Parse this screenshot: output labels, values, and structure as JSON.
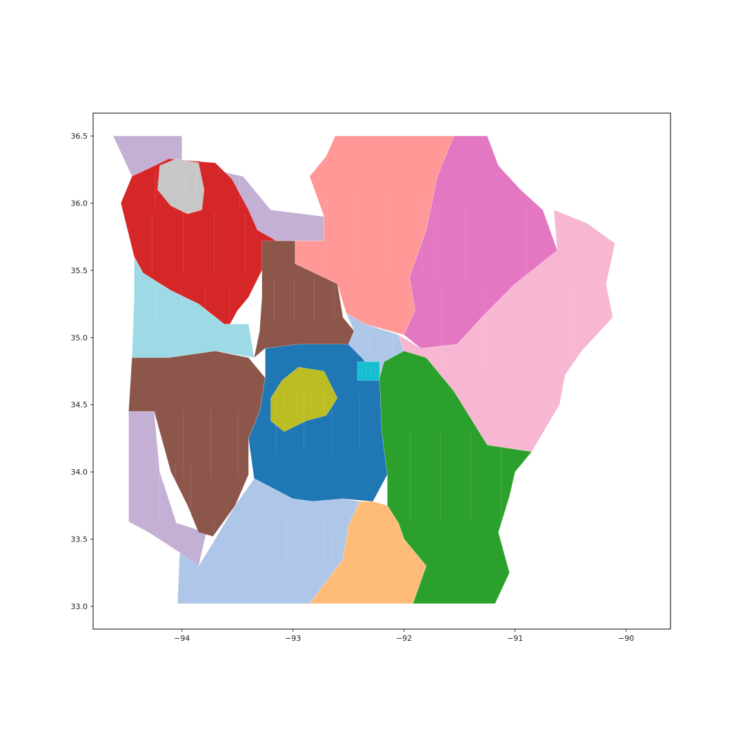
{
  "figure": {
    "background": "#ffffff"
  },
  "axes": {
    "xlim": [
      -94.8,
      -89.6
    ],
    "ylim": [
      32.83,
      36.67
    ],
    "x_ticks": [
      {
        "value": -94,
        "label": "−94"
      },
      {
        "value": -93,
        "label": "−93"
      },
      {
        "value": -92,
        "label": "−92"
      },
      {
        "value": -91,
        "label": "−91"
      },
      {
        "value": -90,
        "label": "−90"
      }
    ],
    "y_ticks": [
      {
        "value": 36.5,
        "label": "36.5"
      },
      {
        "value": 36.0,
        "label": "36.0"
      },
      {
        "value": 35.5,
        "label": "35.5"
      },
      {
        "value": 35.0,
        "label": "35.0"
      },
      {
        "value": 34.5,
        "label": "34.5"
      },
      {
        "value": 34.0,
        "label": "34.0"
      },
      {
        "value": 33.5,
        "label": "33.5"
      },
      {
        "value": 33.0,
        "label": "33.0"
      }
    ],
    "frame_color": "#000000",
    "grid": false
  },
  "map": {
    "type": "choropleth",
    "palette": "tab20",
    "regions": [
      {
        "id": "district-lavender-west",
        "color": "#c5b0d5",
        "outline": [
          [
            -94.62,
            36.5
          ],
          [
            -94.0,
            36.5
          ],
          [
            -94.0,
            36.3
          ],
          [
            -93.45,
            36.2
          ],
          [
            -93.2,
            35.95
          ],
          [
            -92.72,
            35.9
          ],
          [
            -92.72,
            35.72
          ],
          [
            -93.4,
            35.72
          ],
          [
            -93.6,
            36.0
          ],
          [
            -94.45,
            36.2
          ]
        ]
      },
      {
        "id": "district-lavender-southwest",
        "color": "#c5b0d5",
        "outline": [
          [
            -94.48,
            34.45
          ],
          [
            -94.25,
            34.45
          ],
          [
            -94.2,
            34.0
          ],
          [
            -94.05,
            33.62
          ],
          [
            -93.78,
            33.55
          ],
          [
            -93.85,
            33.3
          ],
          [
            -93.98,
            33.25
          ],
          [
            -94.02,
            33.4
          ],
          [
            -94.3,
            33.55
          ],
          [
            -94.48,
            33.63
          ]
        ]
      },
      {
        "id": "district-red",
        "color": "#d62728",
        "outline": [
          [
            -94.45,
            36.2
          ],
          [
            -94.32,
            36.25
          ],
          [
            -94.12,
            36.33
          ],
          [
            -93.7,
            36.3
          ],
          [
            -93.55,
            36.18
          ],
          [
            -93.4,
            35.95
          ],
          [
            -93.32,
            35.8
          ],
          [
            -93.15,
            35.72
          ],
          [
            -93.28,
            35.5
          ],
          [
            -93.4,
            35.3
          ],
          [
            -93.5,
            35.2
          ],
          [
            -93.58,
            35.08
          ],
          [
            -93.62,
            35.1
          ],
          [
            -93.85,
            35.25
          ],
          [
            -94.1,
            35.35
          ],
          [
            -94.35,
            35.48
          ],
          [
            -94.43,
            35.6
          ],
          [
            -94.55,
            36.0
          ]
        ]
      },
      {
        "id": "district-gray",
        "color": "#c7c7c7",
        "outline": [
          [
            -94.2,
            36.28
          ],
          [
            -94.05,
            36.33
          ],
          [
            -93.85,
            36.3
          ],
          [
            -93.8,
            36.1
          ],
          [
            -93.82,
            35.95
          ],
          [
            -93.95,
            35.92
          ],
          [
            -94.1,
            35.98
          ],
          [
            -94.22,
            36.1
          ]
        ]
      },
      {
        "id": "district-cyan-west",
        "color": "#9edae5",
        "outline": [
          [
            -94.43,
            35.6
          ],
          [
            -94.35,
            35.48
          ],
          [
            -94.1,
            35.35
          ],
          [
            -93.85,
            35.25
          ],
          [
            -93.62,
            35.1
          ],
          [
            -93.4,
            35.1
          ],
          [
            -93.35,
            34.85
          ],
          [
            -93.7,
            34.9
          ],
          [
            -94.12,
            34.85
          ],
          [
            -94.45,
            34.85
          ],
          [
            -94.43,
            35.3
          ]
        ]
      },
      {
        "id": "district-brown-central",
        "color": "#8c564b",
        "outline": [
          [
            -93.28,
            35.72
          ],
          [
            -93.15,
            35.72
          ],
          [
            -92.98,
            35.72
          ],
          [
            -92.98,
            35.55
          ],
          [
            -92.6,
            35.4
          ],
          [
            -92.55,
            35.15
          ],
          [
            -92.45,
            35.05
          ],
          [
            -92.5,
            34.95
          ],
          [
            -92.7,
            34.95
          ],
          [
            -92.95,
            34.95
          ],
          [
            -93.25,
            34.92
          ],
          [
            -93.35,
            34.85
          ],
          [
            -93.3,
            35.05
          ],
          [
            -93.28,
            35.3
          ]
        ]
      },
      {
        "id": "district-brown-southwest",
        "color": "#8c564b",
        "outline": [
          [
            -94.45,
            34.85
          ],
          [
            -94.12,
            34.85
          ],
          [
            -93.7,
            34.9
          ],
          [
            -93.4,
            34.85
          ],
          [
            -93.25,
            34.7
          ],
          [
            -93.3,
            34.45
          ],
          [
            -93.4,
            34.25
          ],
          [
            -93.4,
            33.98
          ],
          [
            -93.52,
            33.75
          ],
          [
            -93.72,
            33.52
          ],
          [
            -93.85,
            33.55
          ],
          [
            -93.95,
            33.75
          ],
          [
            -94.1,
            34.0
          ],
          [
            -94.25,
            34.45
          ],
          [
            -94.48,
            34.45
          ]
        ]
      },
      {
        "id": "district-blue",
        "color": "#1f77b4",
        "outline": [
          [
            -93.25,
            34.92
          ],
          [
            -92.95,
            34.95
          ],
          [
            -92.7,
            34.95
          ],
          [
            -92.5,
            34.95
          ],
          [
            -92.38,
            34.85
          ],
          [
            -92.22,
            34.7
          ],
          [
            -92.2,
            34.3
          ],
          [
            -92.15,
            33.98
          ],
          [
            -92.28,
            33.78
          ],
          [
            -92.55,
            33.8
          ],
          [
            -92.82,
            33.78
          ],
          [
            -93.0,
            33.8
          ],
          [
            -93.35,
            33.95
          ],
          [
            -93.4,
            34.25
          ],
          [
            -93.3,
            34.45
          ],
          [
            -93.25,
            34.7
          ]
        ]
      },
      {
        "id": "district-olive",
        "color": "#bcbd22",
        "outline": [
          [
            -92.95,
            34.78
          ],
          [
            -92.72,
            34.75
          ],
          [
            -92.6,
            34.55
          ],
          [
            -92.7,
            34.42
          ],
          [
            -92.88,
            34.38
          ],
          [
            -93.08,
            34.3
          ],
          [
            -93.2,
            34.38
          ],
          [
            -93.2,
            34.55
          ],
          [
            -93.1,
            34.68
          ]
        ]
      },
      {
        "id": "district-light-blue-capital",
        "color": "#aec7e8",
        "outline": [
          [
            -92.5,
            34.95
          ],
          [
            -92.45,
            35.05
          ],
          [
            -92.52,
            35.18
          ],
          [
            -92.35,
            35.1
          ],
          [
            -92.05,
            35.02
          ],
          [
            -92.0,
            34.9
          ],
          [
            -92.18,
            34.82
          ],
          [
            -92.22,
            34.7
          ],
          [
            -92.38,
            34.85
          ]
        ]
      },
      {
        "id": "district-teal-city",
        "color": "#17becf",
        "outline": [
          [
            -92.42,
            34.82
          ],
          [
            -92.22,
            34.82
          ],
          [
            -92.22,
            34.68
          ],
          [
            -92.42,
            34.68
          ]
        ]
      },
      {
        "id": "district-salmon",
        "color": "#ff9896",
        "outline": [
          [
            -92.62,
            36.5
          ],
          [
            -91.55,
            36.5
          ],
          [
            -91.7,
            36.2
          ],
          [
            -91.8,
            35.8
          ],
          [
            -91.95,
            35.45
          ],
          [
            -91.9,
            35.2
          ],
          [
            -92.0,
            35.02
          ],
          [
            -92.35,
            35.1
          ],
          [
            -92.52,
            35.18
          ],
          [
            -92.6,
            35.4
          ],
          [
            -92.98,
            35.55
          ],
          [
            -92.98,
            35.72
          ],
          [
            -92.72,
            35.72
          ],
          [
            -92.72,
            35.9
          ],
          [
            -92.85,
            36.2
          ],
          [
            -92.7,
            36.35
          ]
        ]
      },
      {
        "id": "district-magenta",
        "color": "#e377c2",
        "outline": [
          [
            -91.55,
            36.5
          ],
          [
            -91.25,
            36.5
          ],
          [
            -91.15,
            36.28
          ],
          [
            -90.95,
            36.1
          ],
          [
            -90.75,
            35.95
          ],
          [
            -90.62,
            35.65
          ],
          [
            -90.65,
            35.45
          ],
          [
            -91.0,
            35.4
          ],
          [
            -91.3,
            35.15
          ],
          [
            -91.52,
            34.95
          ],
          [
            -91.85,
            34.92
          ],
          [
            -92.0,
            35.02
          ],
          [
            -91.9,
            35.2
          ],
          [
            -91.95,
            35.45
          ],
          [
            -91.8,
            35.8
          ],
          [
            -91.7,
            36.2
          ]
        ]
      },
      {
        "id": "district-pink-east",
        "color": "#f7b6d2",
        "outline": [
          [
            -90.65,
            35.95
          ],
          [
            -90.35,
            35.85
          ],
          [
            -90.1,
            35.7
          ],
          [
            -90.18,
            35.4
          ],
          [
            -90.12,
            35.15
          ],
          [
            -90.4,
            34.9
          ],
          [
            -90.55,
            34.72
          ],
          [
            -90.6,
            34.5
          ],
          [
            -90.85,
            34.15
          ],
          [
            -91.25,
            34.2
          ],
          [
            -91.55,
            34.6
          ],
          [
            -91.8,
            34.85
          ],
          [
            -92.0,
            34.9
          ],
          [
            -92.05,
            35.02
          ],
          [
            -91.85,
            34.92
          ],
          [
            -91.52,
            34.95
          ],
          [
            -91.3,
            35.15
          ],
          [
            -91.0,
            35.4
          ],
          [
            -90.62,
            35.65
          ]
        ]
      },
      {
        "id": "district-green",
        "color": "#2ca02c",
        "outline": [
          [
            -92.0,
            34.9
          ],
          [
            -92.18,
            34.82
          ],
          [
            -92.22,
            34.7
          ],
          [
            -92.2,
            34.3
          ],
          [
            -92.15,
            33.98
          ],
          [
            -92.15,
            33.75
          ],
          [
            -92.05,
            33.62
          ],
          [
            -92.0,
            33.5
          ],
          [
            -91.8,
            33.3
          ],
          [
            -91.92,
            33.02
          ],
          [
            -91.18,
            33.02
          ],
          [
            -91.05,
            33.25
          ],
          [
            -91.15,
            33.55
          ],
          [
            -91.05,
            33.82
          ],
          [
            -91.0,
            34.0
          ],
          [
            -90.85,
            34.15
          ],
          [
            -91.25,
            34.2
          ],
          [
            -91.55,
            34.6
          ],
          [
            -91.8,
            34.85
          ]
        ]
      },
      {
        "id": "district-light-blue-south",
        "color": "#aec7e8",
        "outline": [
          [
            -94.02,
            33.4
          ],
          [
            -93.85,
            33.3
          ],
          [
            -93.7,
            33.5
          ],
          [
            -93.52,
            33.75
          ],
          [
            -93.35,
            33.95
          ],
          [
            -93.0,
            33.8
          ],
          [
            -92.82,
            33.78
          ],
          [
            -92.55,
            33.8
          ],
          [
            -92.4,
            33.78
          ],
          [
            -92.5,
            33.6
          ],
          [
            -92.55,
            33.35
          ],
          [
            -92.85,
            33.02
          ],
          [
            -94.04,
            33.02
          ]
        ]
      },
      {
        "id": "district-orange",
        "color": "#ffbb78",
        "outline": [
          [
            -92.4,
            33.78
          ],
          [
            -92.28,
            33.78
          ],
          [
            -92.15,
            33.75
          ],
          [
            -92.05,
            33.62
          ],
          [
            -92.0,
            33.5
          ],
          [
            -91.8,
            33.3
          ],
          [
            -91.92,
            33.02
          ],
          [
            -92.85,
            33.02
          ],
          [
            -92.55,
            33.35
          ],
          [
            -92.5,
            33.6
          ]
        ]
      }
    ]
  }
}
